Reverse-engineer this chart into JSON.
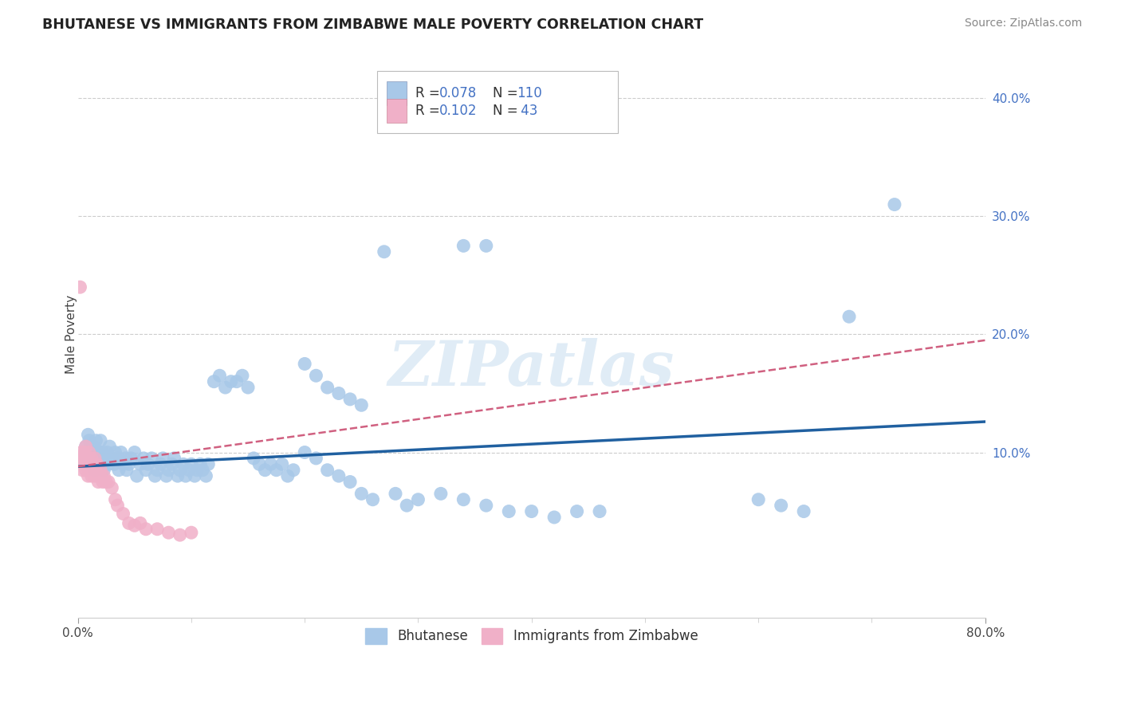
{
  "title": "BHUTANESE VS IMMIGRANTS FROM ZIMBABWE MALE POVERTY CORRELATION CHART",
  "source": "Source: ZipAtlas.com",
  "ylabel": "Male Poverty",
  "ytick_values": [
    0.1,
    0.2,
    0.3,
    0.4
  ],
  "xlim": [
    0.0,
    0.8
  ],
  "ylim": [
    -0.04,
    0.44
  ],
  "blue_color": "#a8c8e8",
  "blue_line_color": "#2060a0",
  "pink_color": "#f0b0c8",
  "pink_line_color": "#d06080",
  "watermark": "ZIPatlas",
  "blue_line_x": [
    0.0,
    0.8
  ],
  "blue_line_y": [
    0.088,
    0.126
  ],
  "pink_line_x": [
    0.0,
    0.8
  ],
  "pink_line_y": [
    0.088,
    0.195
  ],
  "bhutanese_x": [
    0.005,
    0.007,
    0.008,
    0.009,
    0.01,
    0.01,
    0.011,
    0.012,
    0.013,
    0.014,
    0.015,
    0.015,
    0.016,
    0.017,
    0.018,
    0.019,
    0.02,
    0.02,
    0.021,
    0.022,
    0.023,
    0.025,
    0.026,
    0.027,
    0.028,
    0.03,
    0.032,
    0.033,
    0.035,
    0.036,
    0.038,
    0.04,
    0.042,
    0.043,
    0.045,
    0.047,
    0.05,
    0.052,
    0.055,
    0.058,
    0.06,
    0.062,
    0.065,
    0.068,
    0.07,
    0.073,
    0.075,
    0.078,
    0.08,
    0.083,
    0.085,
    0.088,
    0.09,
    0.093,
    0.095,
    0.098,
    0.1,
    0.103,
    0.105,
    0.108,
    0.11,
    0.113,
    0.115,
    0.12,
    0.125,
    0.13,
    0.135,
    0.14,
    0.145,
    0.15,
    0.155,
    0.16,
    0.165,
    0.17,
    0.175,
    0.18,
    0.185,
    0.19,
    0.2,
    0.21,
    0.22,
    0.23,
    0.24,
    0.25,
    0.26,
    0.27,
    0.28,
    0.29,
    0.3,
    0.32,
    0.34,
    0.36,
    0.38,
    0.4,
    0.42,
    0.44,
    0.46,
    0.6,
    0.62,
    0.64,
    0.2,
    0.21,
    0.22,
    0.23,
    0.24,
    0.25,
    0.34,
    0.36,
    0.68,
    0.72
  ],
  "bhutanese_y": [
    0.095,
    0.105,
    0.1,
    0.115,
    0.095,
    0.11,
    0.1,
    0.09,
    0.095,
    0.105,
    0.1,
    0.085,
    0.11,
    0.095,
    0.1,
    0.09,
    0.1,
    0.11,
    0.095,
    0.1,
    0.085,
    0.095,
    0.1,
    0.09,
    0.105,
    0.095,
    0.09,
    0.1,
    0.095,
    0.085,
    0.1,
    0.09,
    0.095,
    0.085,
    0.09,
    0.095,
    0.1,
    0.08,
    0.09,
    0.095,
    0.085,
    0.09,
    0.095,
    0.08,
    0.085,
    0.09,
    0.095,
    0.08,
    0.085,
    0.09,
    0.095,
    0.08,
    0.085,
    0.09,
    0.08,
    0.085,
    0.09,
    0.08,
    0.085,
    0.09,
    0.085,
    0.08,
    0.09,
    0.16,
    0.165,
    0.155,
    0.16,
    0.16,
    0.165,
    0.155,
    0.095,
    0.09,
    0.085,
    0.09,
    0.085,
    0.09,
    0.08,
    0.085,
    0.1,
    0.095,
    0.085,
    0.08,
    0.075,
    0.065,
    0.06,
    0.27,
    0.065,
    0.055,
    0.06,
    0.065,
    0.06,
    0.055,
    0.05,
    0.05,
    0.045,
    0.05,
    0.05,
    0.06,
    0.055,
    0.05,
    0.175,
    0.165,
    0.155,
    0.15,
    0.145,
    0.14,
    0.275,
    0.275,
    0.215,
    0.31
  ],
  "zimbabwe_x": [
    0.002,
    0.003,
    0.004,
    0.005,
    0.005,
    0.006,
    0.007,
    0.007,
    0.008,
    0.008,
    0.009,
    0.01,
    0.01,
    0.011,
    0.012,
    0.012,
    0.013,
    0.014,
    0.015,
    0.015,
    0.016,
    0.017,
    0.018,
    0.019,
    0.02,
    0.021,
    0.022,
    0.023,
    0.025,
    0.027,
    0.03,
    0.033,
    0.035,
    0.04,
    0.045,
    0.05,
    0.055,
    0.06,
    0.07,
    0.08,
    0.09,
    0.1,
    0.002
  ],
  "zimbabwe_y": [
    0.095,
    0.1,
    0.085,
    0.09,
    0.095,
    0.1,
    0.085,
    0.105,
    0.09,
    0.095,
    0.08,
    0.1,
    0.085,
    0.09,
    0.095,
    0.08,
    0.085,
    0.09,
    0.095,
    0.08,
    0.085,
    0.09,
    0.075,
    0.08,
    0.085,
    0.08,
    0.075,
    0.08,
    0.075,
    0.075,
    0.07,
    0.06,
    0.055,
    0.048,
    0.04,
    0.038,
    0.04,
    0.035,
    0.035,
    0.032,
    0.03,
    0.032,
    0.24
  ]
}
